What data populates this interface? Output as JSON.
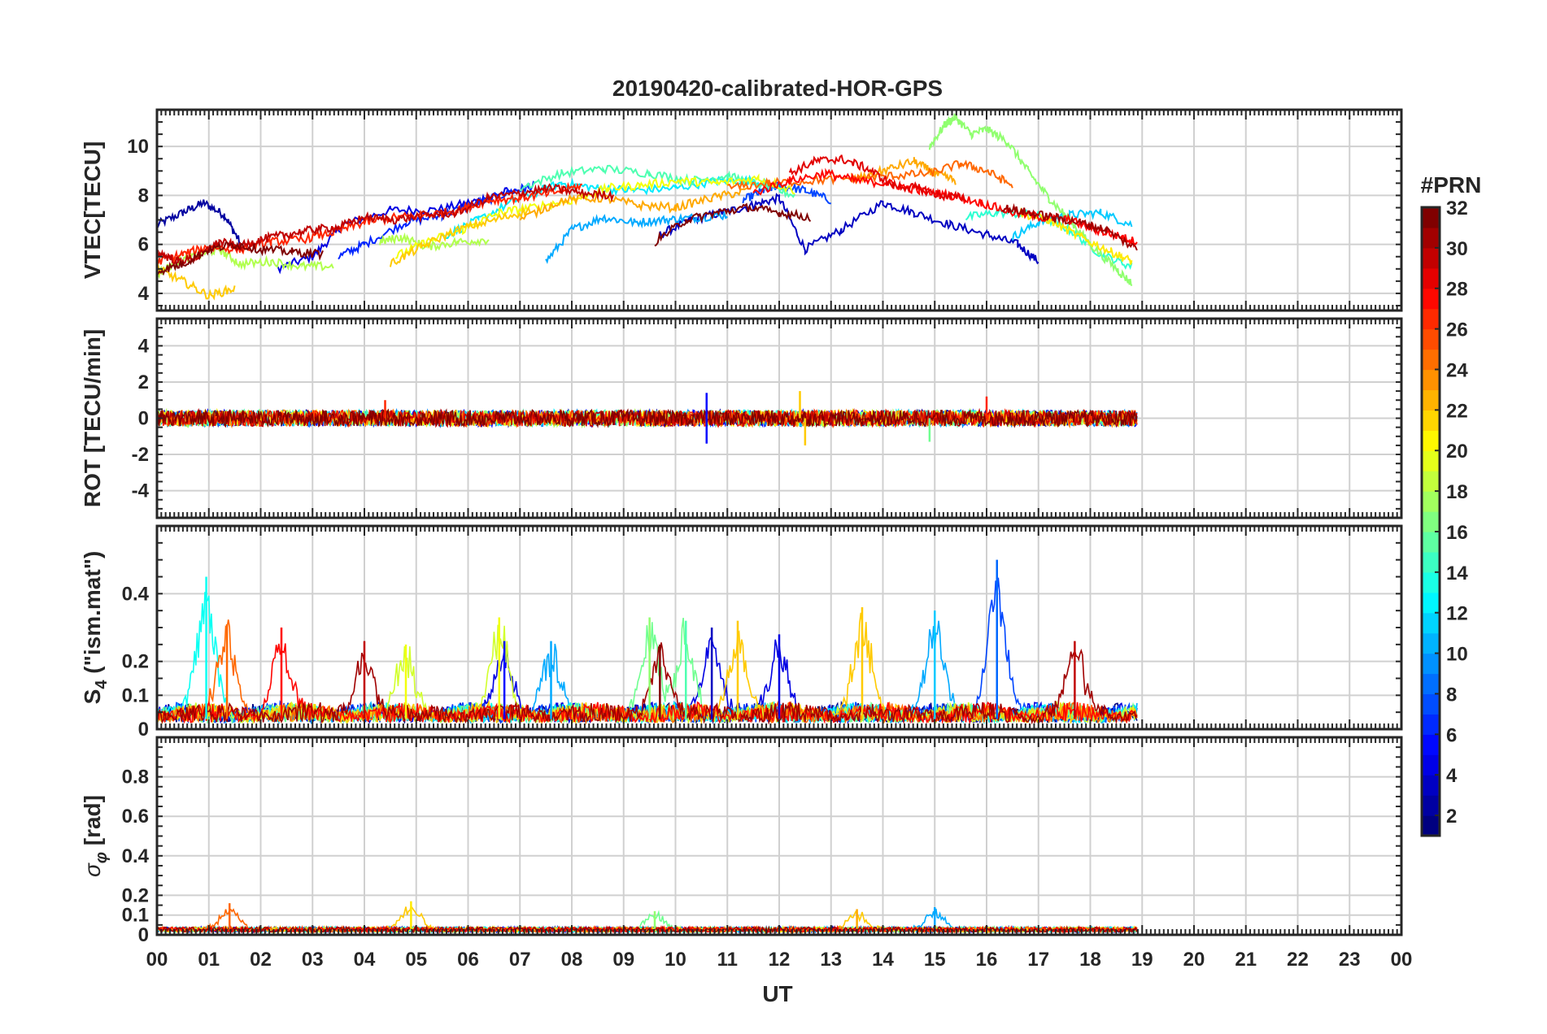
{
  "chart_data": {
    "type": "line",
    "title": "20190420-calibrated-HOR-GPS",
    "xlabel": "UT",
    "x_tick_labels": [
      "00",
      "01",
      "02",
      "03",
      "04",
      "05",
      "06",
      "07",
      "08",
      "09",
      "10",
      "11",
      "12",
      "13",
      "14",
      "15",
      "16",
      "17",
      "18",
      "19",
      "20",
      "21",
      "22",
      "23",
      "00"
    ],
    "xlim_hours": [
      0,
      24
    ],
    "grid": true,
    "colorbar": {
      "label": "#PRN",
      "range": [
        1,
        32
      ],
      "ticks": [
        2,
        4,
        6,
        8,
        10,
        12,
        14,
        16,
        18,
        20,
        22,
        24,
        26,
        28,
        30,
        32
      ],
      "colormap": "jet",
      "colors": [
        "#00008f",
        "#0000ff",
        "#0080ff",
        "#00ffff",
        "#80ff80",
        "#ffff00",
        "#ff8000",
        "#ff0000",
        "#800000"
      ]
    },
    "panels": [
      {
        "id": "vtec",
        "ylabel": "VTEC[TECU]",
        "ylim": [
          3.3,
          11.5
        ],
        "yticks": [
          4,
          6,
          8,
          10
        ],
        "series": [
          {
            "prn": 2,
            "t": [
              0,
              0.5,
              0.9,
              1.3,
              1.6
            ],
            "v": [
              6.8,
              7.3,
              7.7,
              7.2,
              6.1
            ]
          },
          {
            "prn": 4,
            "t": [
              2.3,
              3.0,
              3.6,
              4.5,
              5.4,
              6.2,
              6.8
            ],
            "v": [
              5.0,
              5.5,
              6.8,
              7.4,
              7.4,
              7.8,
              8.2
            ]
          },
          {
            "prn": 3,
            "t": [
              9.7,
              10.3,
              10.9,
              11.5,
              12.0,
              12.5,
              13.2,
              14.0,
              14.6,
              15.3,
              16.0,
              16.6,
              17.0
            ],
            "v": [
              6.4,
              7.0,
              7.3,
              7.6,
              7.9,
              5.8,
              6.6,
              7.7,
              7.3,
              6.8,
              6.4,
              6.0,
              5.3
            ]
          },
          {
            "prn": 6,
            "t": [
              3.5,
              4.0,
              4.8,
              5.5,
              6.2,
              6.9,
              7.3
            ],
            "v": [
              5.5,
              6.0,
              6.9,
              7.2,
              7.7,
              8.2,
              8.4
            ]
          },
          {
            "prn": 7,
            "t": [
              11.3,
              11.7,
              12.0,
              12.5,
              13.0
            ],
            "v": [
              7.8,
              8.2,
              8.4,
              8.2,
              7.8
            ]
          },
          {
            "prn": 10,
            "t": [
              7.5,
              8.0,
              8.6,
              9.2,
              9.8,
              10.4,
              11.0
            ],
            "v": [
              5.3,
              6.6,
              7.1,
              6.9,
              7.0,
              7.1,
              7.2
            ]
          },
          {
            "prn": 11,
            "t": [
              16.5,
              17.0,
              17.6,
              18.2,
              18.8
            ],
            "v": [
              6.3,
              6.9,
              7.2,
              7.3,
              6.8
            ]
          },
          {
            "prn": 12,
            "t": [
              5.5,
              6.2,
              7.0,
              7.8,
              8.5,
              9.2,
              10.0,
              10.8,
              11.5,
              12.1
            ],
            "v": [
              6.3,
              7.0,
              7.9,
              8.5,
              8.3,
              8.2,
              8.3,
              8.6,
              8.6,
              8.3
            ]
          },
          {
            "prn": 14,
            "t": [
              15.6,
              16.2,
              17.0,
              17.6,
              18.2,
              18.8
            ],
            "v": [
              7.1,
              7.3,
              7.2,
              6.6,
              5.6,
              5.1
            ]
          },
          {
            "prn": 15,
            "t": [
              7.0,
              7.8,
              8.6,
              9.5,
              10.3,
              11.0,
              11.7,
              12.3
            ],
            "v": [
              8.3,
              8.9,
              9.1,
              8.9,
              8.6,
              8.8,
              8.4,
              8.0
            ]
          },
          {
            "prn": 17,
            "t": [
              14.9,
              15.2,
              15.4,
              15.7,
              16.0,
              16.4,
              16.8,
              17.2,
              17.6,
              18.0,
              18.5,
              18.8
            ],
            "v": [
              10.0,
              10.9,
              11.2,
              10.5,
              10.7,
              10.2,
              9.0,
              7.9,
              7.0,
              6.0,
              5.0,
              4.4
            ]
          },
          {
            "prn": 18,
            "t": [
              0,
              0.4,
              0.8,
              1.2,
              1.6,
              2.2,
              2.8,
              3.4
            ],
            "v": [
              4.8,
              5.3,
              5.6,
              5.8,
              5.2,
              5.3,
              5.1,
              5.1
            ]
          },
          {
            "prn": 18,
            "t": [
              4.3,
              4.7,
              5.2,
              5.8,
              6.4
            ],
            "v": [
              6.1,
              6.3,
              5.9,
              6.1,
              6.2
            ]
          },
          {
            "prn": 20,
            "t": [
              4.6,
              5.2,
              5.9,
              6.6,
              7.2,
              8.0,
              8.7,
              9.3,
              10.1,
              10.8,
              11.6,
              12.3
            ],
            "v": [
              5.5,
              6.1,
              6.6,
              7.3,
              7.5,
              7.8,
              8.3,
              8.4,
              8.6,
              8.5,
              8.7,
              8.2
            ]
          },
          {
            "prn": 21,
            "t": [
              16.6,
              17.2,
              17.8,
              18.4,
              18.8
            ],
            "v": [
              7.3,
              7.0,
              6.3,
              5.7,
              5.3
            ]
          },
          {
            "prn": 22,
            "t": [
              0,
              0.5,
              1.0,
              1.5
            ],
            "v": [
              5.0,
              4.5,
              3.9,
              4.2
            ]
          },
          {
            "prn": 22,
            "t": [
              4.5,
              5.1,
              5.8,
              6.5,
              7.2
            ],
            "v": [
              5.2,
              5.9,
              6.6,
              7.0,
              7.4
            ]
          },
          {
            "prn": 23,
            "t": [
              7.0,
              7.8,
              8.6,
              9.3,
              10.0,
              10.7,
              11.4
            ],
            "v": [
              7.0,
              7.8,
              7.9,
              7.6,
              7.5,
              7.9,
              8.2
            ]
          },
          {
            "prn": 23,
            "t": [
              13.4,
              14.0,
              14.6,
              15.0,
              15.4
            ],
            "v": [
              8.6,
              9.0,
              9.4,
              8.9,
              8.6
            ]
          },
          {
            "prn": 25,
            "t": [
              11.0,
              11.8,
              12.6,
              13.4,
              14.2,
              14.9,
              15.5,
              16.0,
              16.5
            ],
            "v": [
              8.3,
              8.5,
              8.6,
              8.7,
              8.8,
              8.9,
              9.3,
              9.0,
              8.4
            ]
          },
          {
            "prn": 27,
            "t": [
              0,
              0.5,
              1.0,
              1.6,
              2.2,
              2.8,
              3.4,
              4.0,
              4.6,
              5.2,
              5.8,
              6.4,
              7.0,
              7.6,
              8.2
            ],
            "v": [
              5.3,
              5.6,
              5.9,
              5.8,
              6.1,
              6.2,
              6.5,
              6.9,
              7.1,
              7.2,
              7.4,
              7.8,
              7.9,
              8.1,
              8.4
            ]
          },
          {
            "prn": 28,
            "t": [
              11.5,
              12.2,
              12.9,
              13.5,
              14.1,
              14.7,
              15.3,
              15.9,
              16.5,
              17.1,
              17.6,
              18.1,
              18.6,
              18.9
            ],
            "v": [
              8.1,
              8.6,
              8.9,
              8.6,
              8.5,
              8.2,
              8.0,
              7.7,
              7.3,
              7.1,
              7.0,
              6.6,
              6.3,
              6.1
            ]
          },
          {
            "prn": 29,
            "t": [
              12.2,
              12.7,
              13.2,
              13.7,
              14.2,
              14.7,
              15.1,
              15.6
            ],
            "v": [
              8.9,
              9.4,
              9.5,
              9.1,
              8.4,
              8.3,
              8.0,
              7.9
            ]
          },
          {
            "prn": 30,
            "t": [
              0,
              0.4,
              0.8,
              1.2,
              1.6,
              2.0,
              2.5,
              3.0,
              3.5,
              4.0,
              4.6,
              5.2,
              5.8,
              6.4,
              7.0,
              7.6,
              8.2,
              8.8
            ],
            "v": [
              5.7,
              5.3,
              5.5,
              6.1,
              5.9,
              6.2,
              6.4,
              6.6,
              6.7,
              7.1,
              7.0,
              7.2,
              7.3,
              7.9,
              8.1,
              8.3,
              8.1,
              8.0
            ]
          },
          {
            "prn": 31,
            "t": [
              16.3,
              16.8,
              17.3,
              17.8,
              18.3,
              18.9
            ],
            "v": [
              7.5,
              7.3,
              7.1,
              6.9,
              6.6,
              5.8
            ]
          },
          {
            "prn": 32,
            "t": [
              0,
              0.5,
              1.0,
              1.5,
              2.0,
              2.6,
              3.2
            ],
            "v": [
              4.9,
              5.2,
              5.8,
              6.0,
              5.8,
              5.7,
              5.6
            ]
          },
          {
            "prn": 32,
            "t": [
              9.6,
              10.2,
              10.8,
              11.4,
              12.0,
              12.6
            ],
            "v": [
              6.1,
              7.0,
              7.3,
              7.5,
              7.3,
              7.1
            ]
          }
        ]
      },
      {
        "id": "rot",
        "ylabel": "ROT [TECU/min]",
        "ylim": [
          -5.5,
          5.5
        ],
        "yticks": [
          -4,
          -2,
          0,
          2,
          4
        ],
        "note": "dense noise around 0 with amplitude mostly within +/-1 TECU/min",
        "spikes": [
          {
            "prn": 5,
            "t": 10.6,
            "v": 1.4
          },
          {
            "prn": 5,
            "t": 10.6,
            "v": -1.4
          },
          {
            "prn": 22,
            "t": 12.4,
            "v": 1.5
          },
          {
            "prn": 22,
            "t": 12.5,
            "v": -1.5
          },
          {
            "prn": 16,
            "t": 14.9,
            "v": -1.3
          },
          {
            "prn": 27,
            "t": 4.4,
            "v": 1.0
          },
          {
            "prn": 27,
            "t": 16.0,
            "v": 1.2
          }
        ]
      },
      {
        "id": "s4",
        "ylabel": "S4 (\"ism.mat\")",
        "ylim": [
          0,
          0.6
        ],
        "yticks": [
          0,
          0.1,
          0.2,
          0.4
        ],
        "peaks": [
          {
            "prn": 13,
            "t": 0.95,
            "v": 0.45
          },
          {
            "prn": 25,
            "t": 1.35,
            "v": 0.31
          },
          {
            "prn": 28,
            "t": 2.4,
            "v": 0.3
          },
          {
            "prn": 30,
            "t": 4.0,
            "v": 0.26
          },
          {
            "prn": 20,
            "t": 4.8,
            "v": 0.25
          },
          {
            "prn": 20,
            "t": 6.6,
            "v": 0.33
          },
          {
            "prn": 5,
            "t": 6.7,
            "v": 0.26
          },
          {
            "prn": 10,
            "t": 7.6,
            "v": 0.26
          },
          {
            "prn": 17,
            "t": 9.5,
            "v": 0.33
          },
          {
            "prn": 15,
            "t": 10.2,
            "v": 0.32
          },
          {
            "prn": 32,
            "t": 9.7,
            "v": 0.25
          },
          {
            "prn": 3,
            "t": 10.7,
            "v": 0.3
          },
          {
            "prn": 22,
            "t": 11.2,
            "v": 0.32
          },
          {
            "prn": 4,
            "t": 12.0,
            "v": 0.28
          },
          {
            "prn": 22,
            "t": 13.6,
            "v": 0.36
          },
          {
            "prn": 11,
            "t": 15.0,
            "v": 0.35
          },
          {
            "prn": 8,
            "t": 16.2,
            "v": 0.5
          },
          {
            "prn": 30,
            "t": 17.7,
            "v": 0.26
          }
        ]
      },
      {
        "id": "sigma_phi",
        "ylabel": "σφ [rad]",
        "ylim": [
          0,
          1.0
        ],
        "yticks": [
          0,
          0.1,
          0.2,
          0.4,
          0.6,
          0.8
        ],
        "peaks": [
          {
            "prn": 25,
            "t": 1.4,
            "v": 0.16
          },
          {
            "prn": 21,
            "t": 4.9,
            "v": 0.17
          },
          {
            "prn": 17,
            "t": 9.6,
            "v": 0.12
          },
          {
            "prn": 23,
            "t": 13.5,
            "v": 0.13
          },
          {
            "prn": 10,
            "t": 15.0,
            "v": 0.14
          }
        ]
      }
    ],
    "data_end_hour": 18.9
  }
}
